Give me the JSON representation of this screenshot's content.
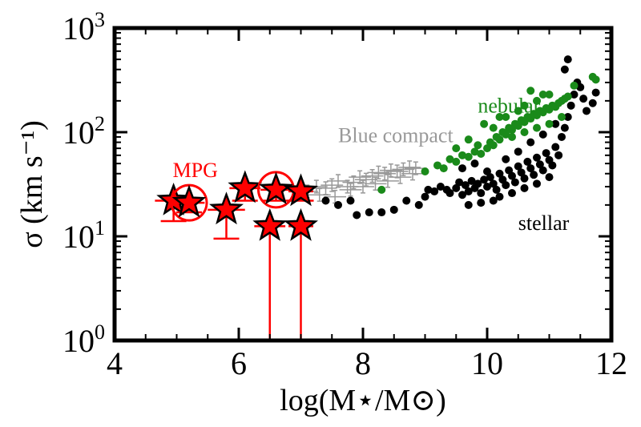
{
  "chart_data": {
    "type": "scatter",
    "title": "",
    "xlabel": "log(M⋆/M⊙)",
    "ylabel": "σ (km s⁻¹)",
    "xlim": [
      4,
      12
    ],
    "ylim": [
      1,
      1000
    ],
    "yscale": "log",
    "x_ticks": [
      "4",
      "6",
      "8",
      "10",
      "12"
    ],
    "y_ticks": [
      {
        "base": "10",
        "exp": "0",
        "value": 1
      },
      {
        "base": "10",
        "exp": "1",
        "value": 10
      },
      {
        "base": "10",
        "exp": "2",
        "value": 100
      },
      {
        "base": "10",
        "exp": "3",
        "value": 1000
      }
    ],
    "grid": false,
    "annotations": [
      {
        "text": "MPG",
        "x": 5.3,
        "y": 37,
        "color": "#ff0000"
      },
      {
        "text": "Blue compact",
        "x": 7.6,
        "y": 80,
        "color": "#999999"
      },
      {
        "text": "nebular",
        "x": 9.85,
        "y": 155,
        "color": "#1a8a1a"
      },
      {
        "text": "stellar",
        "x": 10.5,
        "y": 11.5,
        "color": "#000000"
      }
    ],
    "series": [
      {
        "name": "stellar",
        "color": "#000000",
        "marker": "dot",
        "points": [
          [
            7.4,
            22
          ],
          [
            7.6,
            20
          ],
          [
            7.8,
            22
          ],
          [
            7.9,
            16
          ],
          [
            8.1,
            17
          ],
          [
            8.3,
            17
          ],
          [
            8.5,
            18
          ],
          [
            8.7,
            22
          ],
          [
            8.9,
            20
          ],
          [
            9.0,
            24
          ],
          [
            9.05,
            28
          ],
          [
            9.15,
            27
          ],
          [
            9.25,
            30
          ],
          [
            9.35,
            28
          ],
          [
            9.4,
            26
          ],
          [
            9.5,
            29
          ],
          [
            9.55,
            33
          ],
          [
            9.6,
            25
          ],
          [
            9.65,
            31
          ],
          [
            9.7,
            27
          ],
          [
            9.75,
            34
          ],
          [
            9.8,
            29
          ],
          [
            9.85,
            32
          ],
          [
            9.9,
            26
          ],
          [
            9.95,
            35
          ],
          [
            10.0,
            30
          ],
          [
            10.05,
            37
          ],
          [
            10.1,
            32
          ],
          [
            10.15,
            28
          ],
          [
            10.2,
            40
          ],
          [
            10.25,
            35
          ],
          [
            10.3,
            31
          ],
          [
            10.35,
            43
          ],
          [
            10.4,
            38
          ],
          [
            10.45,
            33
          ],
          [
            10.5,
            47
          ],
          [
            10.55,
            41
          ],
          [
            10.6,
            36
          ],
          [
            10.65,
            52
          ],
          [
            10.7,
            45
          ],
          [
            10.75,
            39
          ],
          [
            10.8,
            57
          ],
          [
            10.85,
            49
          ],
          [
            10.9,
            43
          ],
          [
            10.95,
            63
          ],
          [
            11.0,
            54
          ],
          [
            11.05,
            48
          ],
          [
            11.1,
            72
          ],
          [
            11.15,
            60
          ],
          [
            11.2,
            90
          ],
          [
            11.25,
            110
          ],
          [
            11.3,
            140
          ],
          [
            11.35,
            180
          ],
          [
            11.4,
            230
          ],
          [
            11.45,
            300
          ],
          [
            11.25,
            400
          ],
          [
            11.3,
            500
          ],
          [
            11.5,
            270
          ],
          [
            11.55,
            210
          ],
          [
            11.6,
            160
          ],
          [
            11.7,
            190
          ],
          [
            11.75,
            240
          ],
          [
            10.2,
            24
          ],
          [
            10.4,
            26
          ],
          [
            10.6,
            29
          ],
          [
            10.8,
            32
          ],
          [
            11.0,
            37
          ],
          [
            10.1,
            22
          ],
          [
            9.9,
            21
          ],
          [
            9.7,
            20
          ],
          [
            10.3,
            55
          ],
          [
            10.5,
            65
          ],
          [
            10.7,
            80
          ],
          [
            10.9,
            95
          ],
          [
            11.1,
            120
          ],
          [
            9.6,
            45
          ],
          [
            9.8,
            50
          ],
          [
            10.0,
            42
          ]
        ]
      },
      {
        "name": "nebular",
        "color": "#1a8a1a",
        "marker": "dot",
        "points": [
          [
            8.3,
            28
          ],
          [
            9.0,
            42
          ],
          [
            9.2,
            48
          ],
          [
            9.3,
            45
          ],
          [
            9.4,
            55
          ],
          [
            9.5,
            52
          ],
          [
            9.6,
            60
          ],
          [
            9.7,
            58
          ],
          [
            9.8,
            65
          ],
          [
            9.9,
            62
          ],
          [
            10.0,
            70
          ],
          [
            10.05,
            80
          ],
          [
            10.1,
            75
          ],
          [
            10.15,
            90
          ],
          [
            10.2,
            85
          ],
          [
            10.25,
            100
          ],
          [
            10.3,
            95
          ],
          [
            10.35,
            110
          ],
          [
            10.4,
            105
          ],
          [
            10.45,
            120
          ],
          [
            10.5,
            115
          ],
          [
            10.55,
            130
          ],
          [
            10.6,
            125
          ],
          [
            10.65,
            140
          ],
          [
            10.7,
            135
          ],
          [
            10.75,
            150
          ],
          [
            10.8,
            145
          ],
          [
            10.85,
            160
          ],
          [
            10.9,
            155
          ],
          [
            10.95,
            170
          ],
          [
            11.0,
            165
          ],
          [
            11.05,
            180
          ],
          [
            11.1,
            175
          ],
          [
            11.15,
            190
          ],
          [
            11.2,
            200
          ],
          [
            11.25,
            210
          ],
          [
            11.3,
            220
          ],
          [
            10.5,
            160
          ],
          [
            10.8,
            200
          ],
          [
            11.0,
            230
          ],
          [
            10.7,
            250
          ],
          [
            10.9,
            230
          ],
          [
            10.3,
            140
          ],
          [
            10.6,
            180
          ],
          [
            11.7,
            340
          ],
          [
            11.75,
            320
          ],
          [
            11.4,
            280
          ],
          [
            10.2,
            140
          ],
          [
            9.95,
            120
          ],
          [
            9.5,
            70
          ],
          [
            9.7,
            85
          ],
          [
            10.1,
            110
          ],
          [
            10.4,
            90
          ],
          [
            10.6,
            100
          ],
          [
            10.8,
            110
          ],
          [
            11.0,
            120
          ],
          [
            11.2,
            140
          ],
          [
            9.85,
            75
          ]
        ]
      },
      {
        "name": "Blue compact",
        "color": "#999999",
        "marker": "errorbar",
        "points": [
          [
            7.1,
            27
          ],
          [
            7.25,
            30
          ],
          [
            7.4,
            29
          ],
          [
            7.5,
            31
          ],
          [
            7.6,
            34
          ],
          [
            7.75,
            30
          ],
          [
            7.85,
            33
          ],
          [
            7.95,
            37
          ],
          [
            8.05,
            35
          ],
          [
            8.15,
            38
          ],
          [
            8.25,
            41
          ],
          [
            8.35,
            40
          ],
          [
            8.45,
            43
          ],
          [
            8.55,
            42
          ],
          [
            8.65,
            44
          ],
          [
            8.75,
            46
          ],
          [
            8.85,
            45
          ],
          [
            7.3,
            25
          ],
          [
            7.55,
            24
          ],
          [
            7.8,
            28
          ],
          [
            8.0,
            30
          ],
          [
            8.2,
            32
          ],
          [
            8.4,
            34
          ],
          [
            8.6,
            37
          ],
          [
            8.8,
            40
          ]
        ]
      },
      {
        "name": "MPG",
        "color": "#ff0000",
        "marker": "star",
        "points": [
          {
            "x": 4.95,
            "y": 22,
            "xerr": 0.3,
            "ylow": 14,
            "circle": false
          },
          {
            "x": 5.2,
            "y": 21,
            "xerr": 0.25,
            "ylow": 17,
            "circle": true
          },
          {
            "x": 5.8,
            "y": 18,
            "xerr": 0.3,
            "ylow": 9.5,
            "circle": false
          },
          {
            "x": 6.1,
            "y": 29,
            "xerr": 0.25,
            "ylow": 22,
            "circle": false
          },
          {
            "x": 6.6,
            "y": 28,
            "xerr": 0.25,
            "ylow": 22,
            "circle": true
          },
          {
            "x": 6.5,
            "y": 12.5,
            "xerr": 0.25,
            "ylow": 1,
            "circle": false
          },
          {
            "x": 7.0,
            "y": 27,
            "xerr": 0.2,
            "ylow": 22,
            "circle": false
          },
          {
            "x": 7.0,
            "y": 12.5,
            "xerr": 0.2,
            "ylow": 1,
            "circle": false
          }
        ]
      }
    ]
  }
}
